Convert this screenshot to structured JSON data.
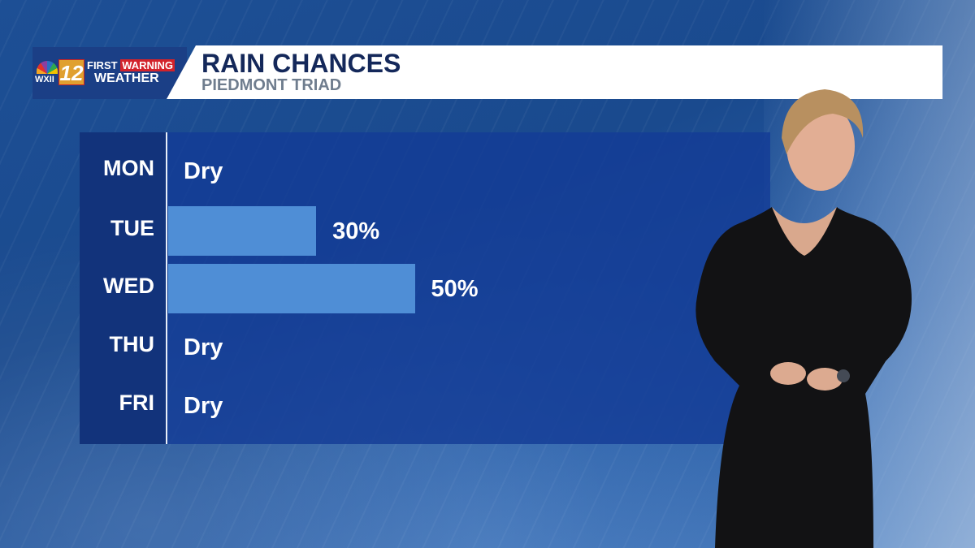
{
  "logo": {
    "network": "WXII",
    "channel": "12",
    "first": "FIRST",
    "warning": "WARNING",
    "weather": "WEATHER"
  },
  "header": {
    "title": "RAIN CHANCES",
    "subtitle": "PIEDMONT TRIAD"
  },
  "colors": {
    "bar": "#4f8ed6",
    "panel": "#1a4599",
    "title": "#14285a"
  },
  "chart_data": {
    "type": "bar",
    "orientation": "horizontal",
    "categories": [
      "MON",
      "TUE",
      "WED",
      "THU",
      "FRI"
    ],
    "values": [
      0,
      30,
      50,
      0,
      0
    ],
    "labels": [
      "Dry",
      "30%",
      "50%",
      "Dry",
      "Dry"
    ],
    "xlim": [
      0,
      100
    ],
    "unit": "%"
  }
}
